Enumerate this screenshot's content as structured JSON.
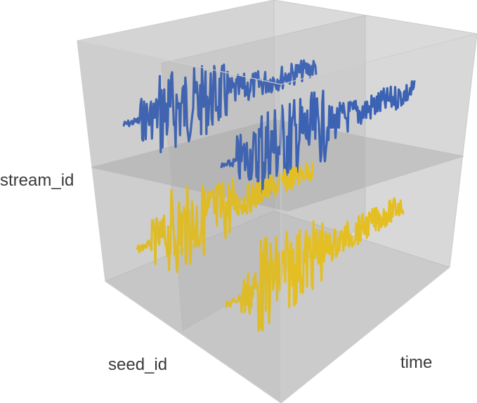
{
  "labels": {
    "stream_axis": "stream_id",
    "seed_axis": "seed_id",
    "time_axis": "time"
  },
  "colors": {
    "cube_face": "#9a9a9a",
    "cube_edge": "#bdbdbd",
    "waveform_top": "#1f4fb5",
    "waveform_bottom": "#f2c400"
  }
}
